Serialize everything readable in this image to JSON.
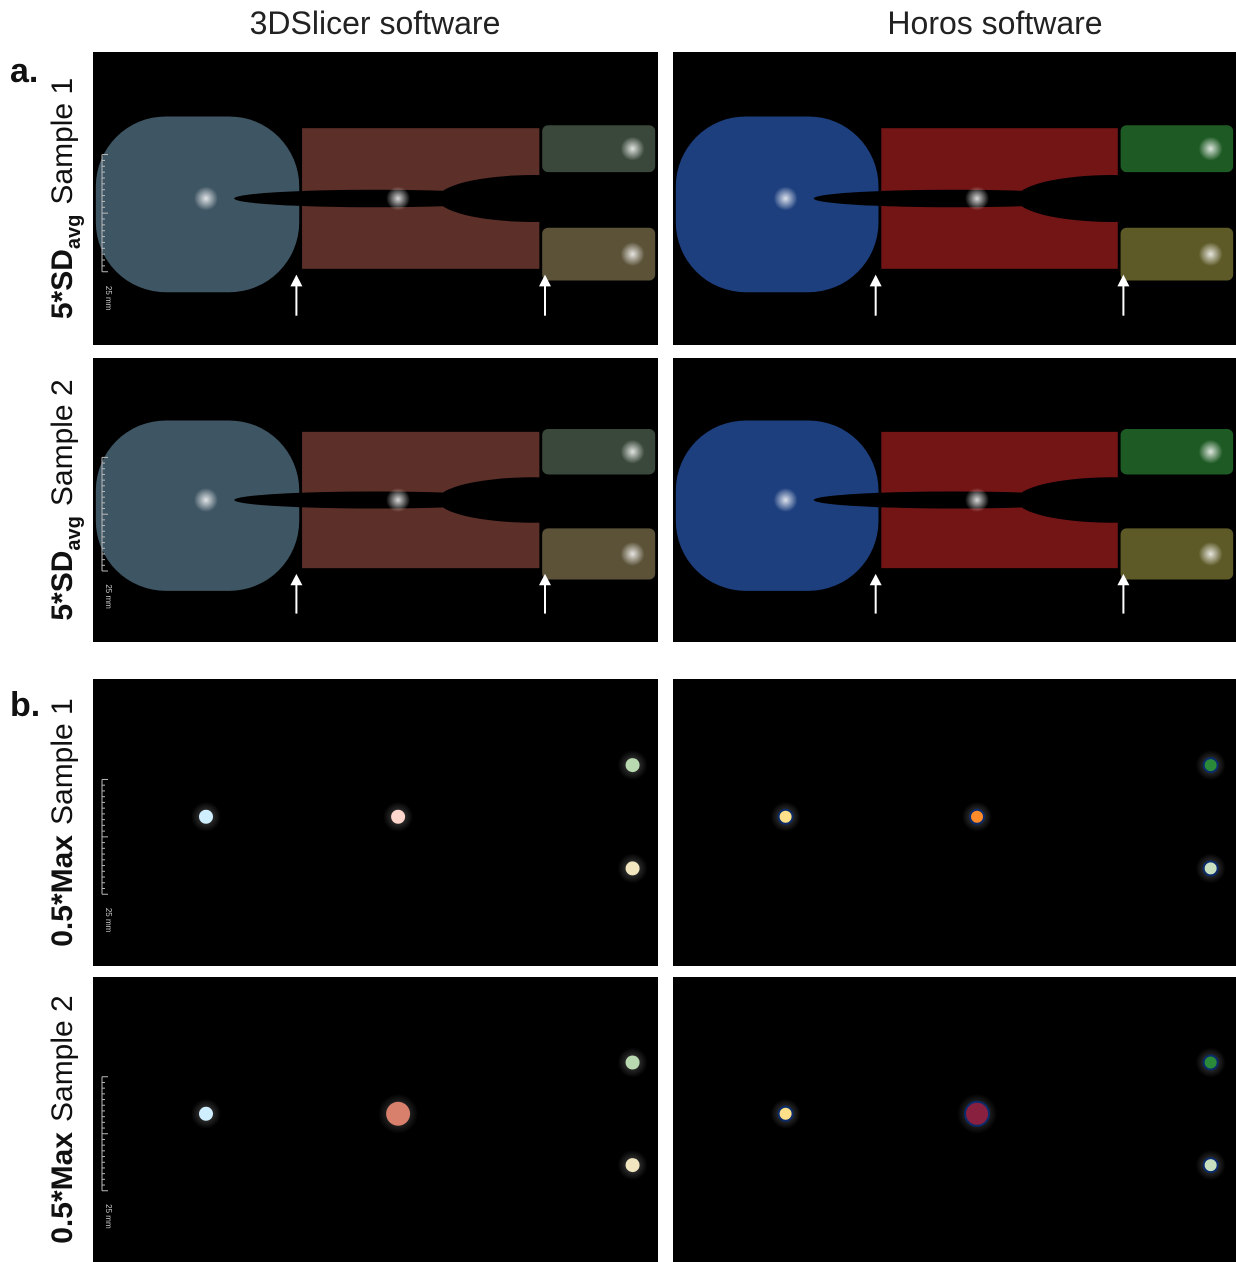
{
  "columns": [
    "3DSlicer software",
    "Horos software"
  ],
  "sections": [
    {
      "label": "a.",
      "rows": [
        {
          "label_bold": "5*SD",
          "label_sub": "avg",
          "label_rest": "Sample 1",
          "scale_label": "25 mm"
        },
        {
          "label_bold": "5*SD",
          "label_sub": "avg",
          "label_rest": "Sample 2",
          "scale_label": "25 mm"
        }
      ]
    },
    {
      "label": "b.",
      "rows": [
        {
          "label_bold": "0.5*Max",
          "label_rest": "Sample 1",
          "scale_label": "25 mm"
        },
        {
          "label_bold": "0.5*Max",
          "label_rest": "Sample 2",
          "scale_label": "25 mm"
        }
      ]
    }
  ]
}
